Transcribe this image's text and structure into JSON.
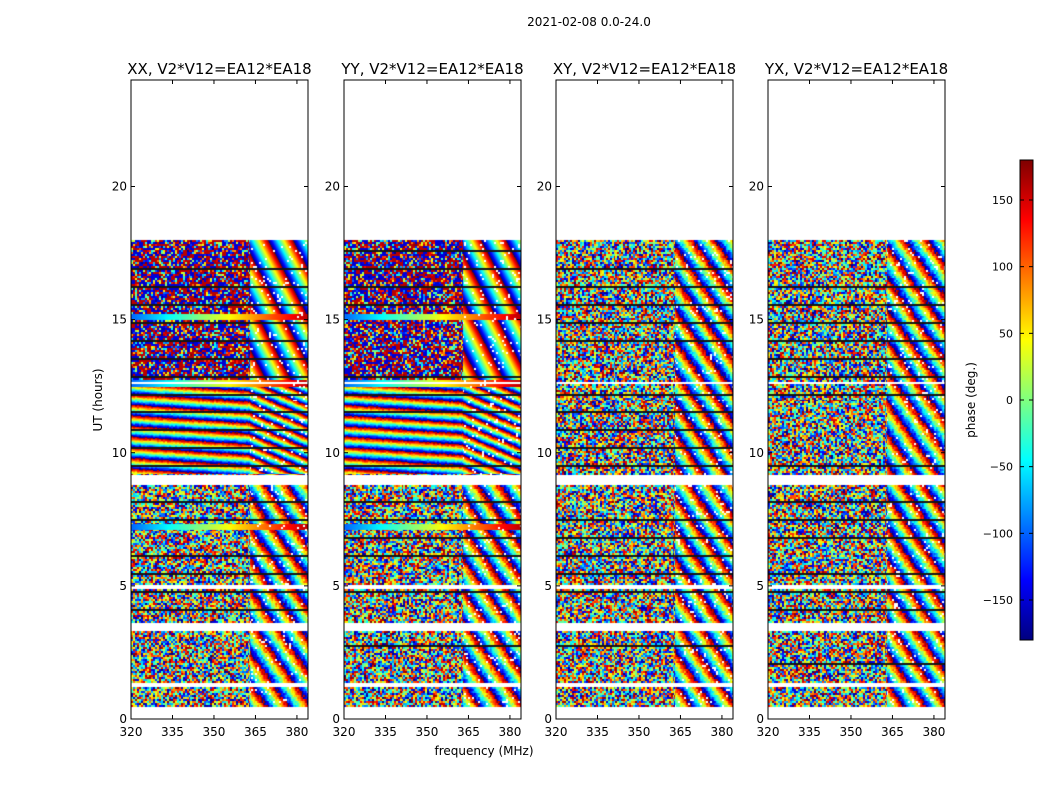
{
  "figure": {
    "suptitle": "2021-02-08 0.0-24.0"
  },
  "chart_data": {
    "type": "heatmap",
    "xlabel": "frequency (MHz)",
    "ylabel": "UT (hours)",
    "xlim": [
      320,
      384
    ],
    "ylim": [
      0,
      24
    ],
    "xticks": [
      320,
      335,
      350,
      365,
      380
    ],
    "yticks": [
      0,
      5,
      10,
      15,
      20
    ],
    "colorbar": {
      "label": "phase (deg.)",
      "range": [
        -180,
        180
      ],
      "ticks": [
        150,
        100,
        50,
        0,
        -50,
        -100,
        -150
      ],
      "tick_labels": [
        "150",
        "100",
        "50",
        "0",
        "−50",
        "−100",
        "−150"
      ],
      "colormap": "jet",
      "colors": [
        "#00007f",
        "#0000ff",
        "#007fff",
        "#00ffff",
        "#7fff7f",
        "#ffff00",
        "#ff7f00",
        "#ff0000",
        "#7f0000"
      ]
    },
    "data_end_hour": 18.0,
    "blank_hour_bands": [
      [
        0.0,
        0.45
      ],
      [
        1.2,
        1.35
      ],
      [
        3.3,
        3.6
      ],
      [
        4.9,
        5.05
      ],
      [
        8.8,
        9.15
      ],
      [
        12.6,
        12.65
      ]
    ],
    "fringe_hour_range": [
      9.2,
      12.6
    ],
    "uniform_phase_rows_hours": [
      7.2,
      12.6,
      15.1
    ],
    "panels": [
      {
        "title": "XX, V2*V12=EA12*EA18",
        "pol": "XX",
        "coherent": true
      },
      {
        "title": "YY, V2*V12=EA12*EA18",
        "pol": "YY",
        "coherent": true
      },
      {
        "title": "XY, V2*V12=EA12*EA18",
        "pol": "XY",
        "coherent": false
      },
      {
        "title": "YX, V2*V12=EA12*EA18",
        "pol": "YX",
        "coherent": false
      }
    ]
  }
}
